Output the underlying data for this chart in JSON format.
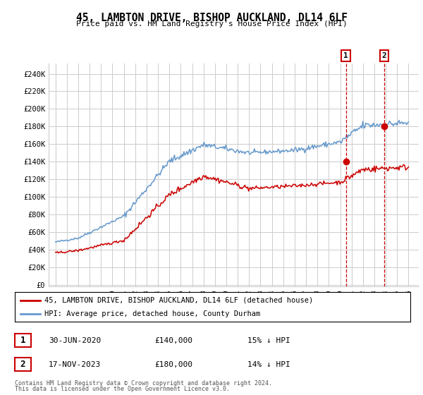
{
  "title": "45, LAMBTON DRIVE, BISHOP AUCKLAND, DL14 6LF",
  "subtitle": "Price paid vs. HM Land Registry's House Price Index (HPI)",
  "ylabel_ticks": [
    0,
    20000,
    40000,
    60000,
    80000,
    100000,
    120000,
    140000,
    160000,
    180000,
    200000,
    220000,
    240000
  ],
  "ylabel_labels": [
    "£0",
    "£20K",
    "£40K",
    "£60K",
    "£80K",
    "£100K",
    "£120K",
    "£140K",
    "£160K",
    "£180K",
    "£200K",
    "£220K",
    "£240K"
  ],
  "x_start_year": 1995,
  "x_end_year": 2026,
  "sale1_date": "30-JUN-2020",
  "sale1_price": 140000,
  "sale1_pct": "15%",
  "sale1_label": "1",
  "sale1_year": 2020.5,
  "sale2_date": "17-NOV-2023",
  "sale2_price": 180000,
  "sale2_pct": "14%",
  "sale2_label": "2",
  "sale2_year": 2023.88,
  "legend_line1": "45, LAMBTON DRIVE, BISHOP AUCKLAND, DL14 6LF (detached house)",
  "legend_line2": "HPI: Average price, detached house, County Durham",
  "footnote1": "Contains HM Land Registry data © Crown copyright and database right 2024.",
  "footnote2": "This data is licensed under the Open Government Licence v3.0.",
  "red_color": "#cc0000",
  "blue_color": "#6699cc",
  "bg_color": "#ffffff",
  "grid_color": "#cccccc"
}
